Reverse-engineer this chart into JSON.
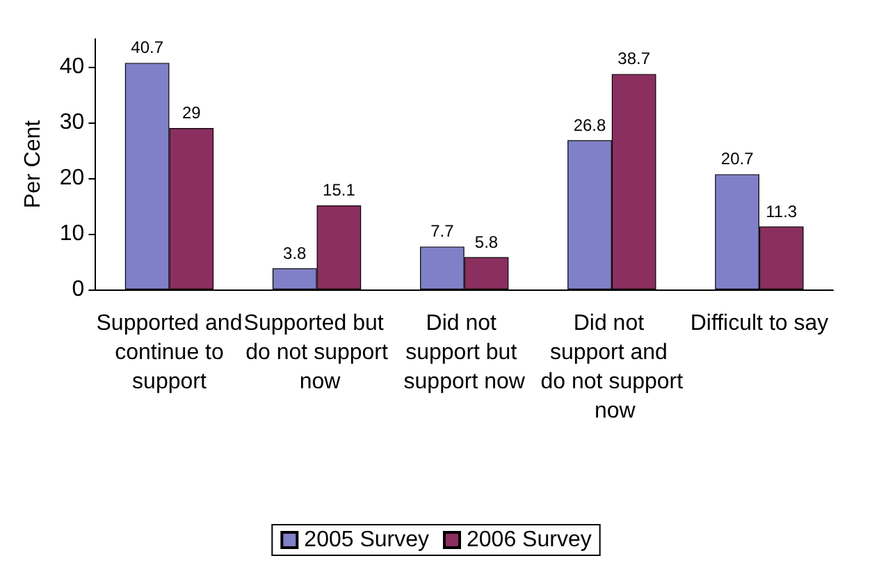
{
  "chart_data": {
    "type": "bar",
    "ylabel": "Per Cent",
    "categories": [
      "Supported and continue to support",
      "Supported but do not support now",
      "Did not support but support now",
      "Did not support and do not support now",
      "Difficult to say"
    ],
    "series": [
      {
        "name": "2005 Survey",
        "color": "#8080c8",
        "values": [
          40.7,
          3.8,
          7.7,
          26.8,
          20.7
        ]
      },
      {
        "name": "2006 Survey",
        "color": "#8b2f5f",
        "values": [
          29,
          15.1,
          5.8,
          38.7,
          11.3
        ]
      }
    ],
    "ylim": [
      0,
      45
    ],
    "yticks": [
      0,
      10,
      20,
      30,
      40
    ],
    "grid": false,
    "legend": "bottom",
    "data_labels": true
  }
}
